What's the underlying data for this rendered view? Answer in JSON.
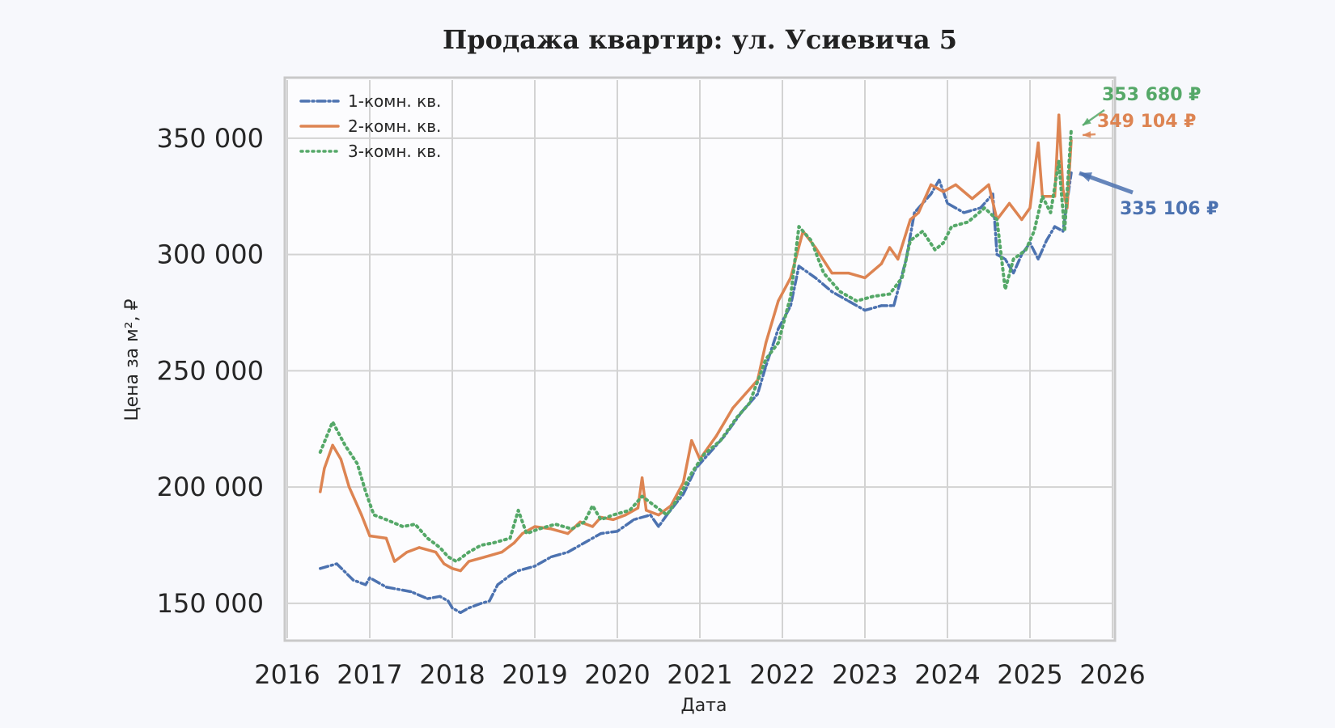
{
  "chart_data": {
    "type": "line",
    "title": "Продажа квартир: ул. Усиевича 5",
    "xlabel": "Дата",
    "ylabel": "Цена за м², ₽",
    "xlim": [
      2016,
      2026
    ],
    "ylim": [
      135000,
      375000
    ],
    "x_ticks": [
      2016,
      2017,
      2018,
      2019,
      2020,
      2021,
      2022,
      2023,
      2024,
      2025,
      2026
    ],
    "x_tick_labels": [
      "2016",
      "2017",
      "2018",
      "2019",
      "2020",
      "2021",
      "2022",
      "2023",
      "2024",
      "2025",
      "2026"
    ],
    "y_ticks": [
      150000,
      200000,
      250000,
      300000,
      350000
    ],
    "y_tick_labels": [
      "150 000",
      "200 000",
      "250 000",
      "300 000",
      "350 000"
    ],
    "grid": true,
    "legend_position": "top-left",
    "series": [
      {
        "name": "1-комн. кв.",
        "color": "#4c72b0",
        "style": "dashdot",
        "points": [
          [
            2016.4,
            165000
          ],
          [
            2016.6,
            167000
          ],
          [
            2016.8,
            160000
          ],
          [
            2016.95,
            158000
          ],
          [
            2017.0,
            161000
          ],
          [
            2017.2,
            157000
          ],
          [
            2017.5,
            155000
          ],
          [
            2017.7,
            152000
          ],
          [
            2017.85,
            153000
          ],
          [
            2017.95,
            151000
          ],
          [
            2018.0,
            148000
          ],
          [
            2018.1,
            146000
          ],
          [
            2018.2,
            148000
          ],
          [
            2018.35,
            150000
          ],
          [
            2018.45,
            151000
          ],
          [
            2018.55,
            158000
          ],
          [
            2018.7,
            162000
          ],
          [
            2018.8,
            164000
          ],
          [
            2019.0,
            166000
          ],
          [
            2019.2,
            170000
          ],
          [
            2019.4,
            172000
          ],
          [
            2019.6,
            176000
          ],
          [
            2019.8,
            180000
          ],
          [
            2020.0,
            181000
          ],
          [
            2020.2,
            186000
          ],
          [
            2020.4,
            188000
          ],
          [
            2020.5,
            183000
          ],
          [
            2020.6,
            188000
          ],
          [
            2020.8,
            197000
          ],
          [
            2020.95,
            208000
          ],
          [
            2021.1,
            214000
          ],
          [
            2021.3,
            222000
          ],
          [
            2021.5,
            232000
          ],
          [
            2021.7,
            240000
          ],
          [
            2021.8,
            252000
          ],
          [
            2021.95,
            268000
          ],
          [
            2022.1,
            278000
          ],
          [
            2022.2,
            295000
          ],
          [
            2022.4,
            290000
          ],
          [
            2022.6,
            284000
          ],
          [
            2022.8,
            280000
          ],
          [
            2023.0,
            276000
          ],
          [
            2023.2,
            278000
          ],
          [
            2023.35,
            278000
          ],
          [
            2023.5,
            298000
          ],
          [
            2023.6,
            318000
          ],
          [
            2023.7,
            322000
          ],
          [
            2023.8,
            326000
          ],
          [
            2023.9,
            332000
          ],
          [
            2024.0,
            322000
          ],
          [
            2024.2,
            318000
          ],
          [
            2024.4,
            320000
          ],
          [
            2024.55,
            326000
          ],
          [
            2024.6,
            300000
          ],
          [
            2024.7,
            298000
          ],
          [
            2024.8,
            292000
          ],
          [
            2024.9,
            300000
          ],
          [
            2025.0,
            305000
          ],
          [
            2025.1,
            298000
          ],
          [
            2025.2,
            306000
          ],
          [
            2025.3,
            312000
          ],
          [
            2025.4,
            310000
          ],
          [
            2025.5,
            335106
          ]
        ]
      },
      {
        "name": "2-комн. кв.",
        "color": "#dd8452",
        "style": "solid",
        "points": [
          [
            2016.4,
            198000
          ],
          [
            2016.45,
            208000
          ],
          [
            2016.55,
            218000
          ],
          [
            2016.65,
            212000
          ],
          [
            2016.75,
            200000
          ],
          [
            2016.9,
            188000
          ],
          [
            2017.0,
            179000
          ],
          [
            2017.2,
            178000
          ],
          [
            2017.3,
            168000
          ],
          [
            2017.45,
            172000
          ],
          [
            2017.6,
            174000
          ],
          [
            2017.8,
            172000
          ],
          [
            2017.9,
            167000
          ],
          [
            2018.0,
            165000
          ],
          [
            2018.1,
            164000
          ],
          [
            2018.2,
            168000
          ],
          [
            2018.4,
            170000
          ],
          [
            2018.6,
            172000
          ],
          [
            2018.75,
            176000
          ],
          [
            2018.85,
            180000
          ],
          [
            2019.0,
            183000
          ],
          [
            2019.2,
            182000
          ],
          [
            2019.4,
            180000
          ],
          [
            2019.55,
            185000
          ],
          [
            2019.7,
            183000
          ],
          [
            2019.8,
            187000
          ],
          [
            2019.95,
            186000
          ],
          [
            2020.1,
            188000
          ],
          [
            2020.25,
            191000
          ],
          [
            2020.3,
            204000
          ],
          [
            2020.35,
            190000
          ],
          [
            2020.5,
            188000
          ],
          [
            2020.65,
            192000
          ],
          [
            2020.8,
            202000
          ],
          [
            2020.9,
            220000
          ],
          [
            2021.0,
            212000
          ],
          [
            2021.2,
            222000
          ],
          [
            2021.4,
            234000
          ],
          [
            2021.55,
            240000
          ],
          [
            2021.7,
            246000
          ],
          [
            2021.8,
            262000
          ],
          [
            2021.95,
            280000
          ],
          [
            2022.1,
            290000
          ],
          [
            2022.25,
            310000
          ],
          [
            2022.4,
            303000
          ],
          [
            2022.6,
            292000
          ],
          [
            2022.8,
            292000
          ],
          [
            2023.0,
            290000
          ],
          [
            2023.2,
            296000
          ],
          [
            2023.3,
            303000
          ],
          [
            2023.4,
            298000
          ],
          [
            2023.55,
            315000
          ],
          [
            2023.65,
            318000
          ],
          [
            2023.8,
            330000
          ],
          [
            2023.95,
            327000
          ],
          [
            2024.1,
            330000
          ],
          [
            2024.3,
            324000
          ],
          [
            2024.5,
            330000
          ],
          [
            2024.6,
            315000
          ],
          [
            2024.75,
            322000
          ],
          [
            2024.9,
            315000
          ],
          [
            2025.0,
            320000
          ],
          [
            2025.1,
            348000
          ],
          [
            2025.15,
            325000
          ],
          [
            2025.3,
            325000
          ],
          [
            2025.35,
            360000
          ],
          [
            2025.4,
            328000
          ],
          [
            2025.45,
            320000
          ],
          [
            2025.5,
            349104
          ]
        ]
      },
      {
        "name": "3-комн. кв.",
        "color": "#55a868",
        "style": "dotted",
        "points": [
          [
            2016.4,
            215000
          ],
          [
            2016.55,
            228000
          ],
          [
            2016.7,
            218000
          ],
          [
            2016.85,
            210000
          ],
          [
            2016.95,
            198000
          ],
          [
            2017.05,
            188000
          ],
          [
            2017.2,
            186000
          ],
          [
            2017.4,
            183000
          ],
          [
            2017.55,
            184000
          ],
          [
            2017.7,
            178000
          ],
          [
            2017.85,
            174000
          ],
          [
            2017.95,
            170000
          ],
          [
            2018.05,
            168000
          ],
          [
            2018.2,
            172000
          ],
          [
            2018.35,
            175000
          ],
          [
            2018.5,
            176000
          ],
          [
            2018.7,
            178000
          ],
          [
            2018.8,
            190000
          ],
          [
            2018.9,
            180000
          ],
          [
            2019.05,
            182000
          ],
          [
            2019.25,
            184000
          ],
          [
            2019.45,
            182000
          ],
          [
            2019.6,
            185000
          ],
          [
            2019.7,
            192000
          ],
          [
            2019.8,
            186000
          ],
          [
            2019.95,
            188000
          ],
          [
            2020.15,
            190000
          ],
          [
            2020.3,
            196000
          ],
          [
            2020.45,
            192000
          ],
          [
            2020.6,
            188000
          ],
          [
            2020.75,
            196000
          ],
          [
            2020.9,
            206000
          ],
          [
            2021.05,
            214000
          ],
          [
            2021.25,
            220000
          ],
          [
            2021.45,
            230000
          ],
          [
            2021.6,
            236000
          ],
          [
            2021.8,
            255000
          ],
          [
            2021.95,
            262000
          ],
          [
            2022.1,
            282000
          ],
          [
            2022.2,
            312000
          ],
          [
            2022.35,
            306000
          ],
          [
            2022.5,
            292000
          ],
          [
            2022.7,
            284000
          ],
          [
            2022.9,
            280000
          ],
          [
            2023.1,
            282000
          ],
          [
            2023.3,
            283000
          ],
          [
            2023.45,
            290000
          ],
          [
            2023.55,
            306000
          ],
          [
            2023.7,
            310000
          ],
          [
            2023.85,
            302000
          ],
          [
            2023.95,
            305000
          ],
          [
            2024.05,
            312000
          ],
          [
            2024.25,
            314000
          ],
          [
            2024.45,
            320000
          ],
          [
            2024.6,
            315000
          ],
          [
            2024.7,
            285000
          ],
          [
            2024.8,
            298000
          ],
          [
            2024.95,
            302000
          ],
          [
            2025.05,
            310000
          ],
          [
            2025.15,
            325000
          ],
          [
            2025.25,
            318000
          ],
          [
            2025.35,
            340000
          ],
          [
            2025.42,
            310000
          ],
          [
            2025.5,
            353680
          ]
        ]
      }
    ],
    "annotations": [
      {
        "text": "353 680 ₽",
        "color": "#55a868",
        "x": 2025.5,
        "y": 353680
      },
      {
        "text": "349 104 ₽",
        "color": "#dd8452",
        "x": 2025.5,
        "y": 349104
      },
      {
        "text": "335 106 ₽",
        "color": "#4c72b0",
        "x": 2025.5,
        "y": 335106
      }
    ]
  }
}
